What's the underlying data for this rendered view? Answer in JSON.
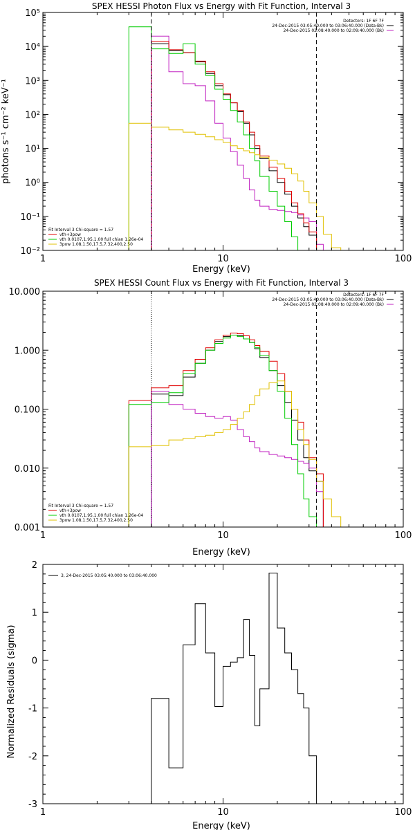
{
  "chart_data": [
    {
      "type": "line",
      "title": "SPEX HESSI Photon Flux vs Energy with Fit Function, Interval 3",
      "xlabel": "Energy (keV)",
      "ylabel": "photons s⁻¹ cm⁻² keV⁻¹",
      "xlim": [
        1,
        100
      ],
      "ylim": [
        0.01,
        100000
      ],
      "xscale": "log",
      "yscale": "log",
      "x_tick_labels": [
        "1",
        "10",
        "100"
      ],
      "y_tick_labels": [
        "10⁻²",
        "10⁻¹",
        "10⁰",
        "10¹",
        "10²",
        "10³",
        "10⁴",
        "10⁵"
      ],
      "info_lines": [
        "Detectors: 1F 6F 7F",
        "24-Dec-2015 03:05:40.000 to 03:06:40.000 (Data-Bk)",
        "24-Dec-2015 02:08:40.000 to 02:09:40.000 (Bk)"
      ],
      "fit_lines": [
        "Fit Interval 3   Chi-square = 1.57",
        "vth+3pow",
        "vth 0.0107,1.95,1.00  full chian 1.26e-04",
        "3pow 1.08,1.50,17.5,7.32,400,2.50"
      ],
      "vlines": [
        4.0,
        33.0
      ],
      "edges": [
        3.0,
        4.0,
        5.0,
        6.0,
        7.0,
        8.0,
        9.0,
        10.0,
        11.0,
        12.0,
        13.0,
        14.0,
        15.0,
        16.0,
        18.0,
        20.0,
        22.0,
        24.0,
        26.0,
        28.0,
        30.0,
        33.0,
        36.0,
        40.0,
        45.0
      ],
      "series": [
        {
          "name": "Data-Bk",
          "color": "#000000",
          "start": 1,
          "values": [
            12000,
            7500,
            6500,
            3500,
            1600,
            700,
            380,
            220,
            120,
            55,
            25,
            10,
            5,
            2.2,
            1.0,
            0.45,
            0.2,
            0.09,
            0.05,
            0.028,
            null,
            null,
            null
          ]
        },
        {
          "name": "Bk",
          "color": "#c020c0",
          "start": 1,
          "values": [
            20000,
            1800,
            800,
            700,
            250,
            55,
            20,
            8,
            3.2,
            1.3,
            0.6,
            0.3,
            0.2,
            0.16,
            0.15,
            0.14,
            0.13,
            0.11,
            0.09,
            0.07,
            0.015,
            null,
            null
          ]
        },
        {
          "name": "vth+3pow",
          "color": "#e00000",
          "start": 1,
          "values": [
            14000,
            8000,
            6500,
            3700,
            1800,
            800,
            400,
            220,
            130,
            60,
            30,
            12,
            6,
            2.8,
            1.3,
            0.55,
            0.25,
            0.12,
            0.065,
            0.035,
            null,
            null,
            null
          ]
        },
        {
          "name": "vth",
          "color": "#00cc00",
          "start": 0,
          "values": [
            38000,
            8500,
            6200,
            12000,
            3000,
            1400,
            550,
            280,
            130,
            60,
            25,
            10,
            4.3,
            1.5,
            0.55,
            0.2,
            0.07,
            0.025,
            0.01,
            null,
            null,
            null,
            null,
            null
          ]
        },
        {
          "name": "3pow",
          "color": "#e0c000",
          "start": 0,
          "values": [
            55,
            42,
            35,
            30,
            26,
            22,
            18,
            15,
            12,
            10,
            8.5,
            7.5,
            6.5,
            5.5,
            4.5,
            3.5,
            2.6,
            1.8,
            1.1,
            0.55,
            0.25,
            0.1,
            0.03,
            0.012
          ]
        }
      ]
    },
    {
      "type": "line",
      "title": "SPEX HESSI Count Flux vs Energy with Fit Function, Interval 3",
      "xlabel": "Energy (keV)",
      "ylabel": "",
      "xlim": [
        1,
        100
      ],
      "ylim": [
        0.001,
        10
      ],
      "xscale": "log",
      "yscale": "log",
      "x_tick_labels": [
        "1",
        "10",
        "100"
      ],
      "y_tick_labels": [
        "0.001",
        "0.010",
        "0.100",
        "1.000",
        "10.000"
      ],
      "info_lines": [
        "Detectors: 1F 6F 7F",
        "24-Dec-2015 03:05:40.000 to 03:06:40.000 (Data-Bk)",
        "24-Dec-2015 02:08:40.000 to 02:09:40.000 (Bk)"
      ],
      "fit_lines": [
        "Fit Interval 3   Chi-square = 1.57",
        "vth+3pow",
        "vth 0.0107,1.95,1.00  full chian 1.26e-04",
        "3pow 1.08,1.50,17.5,7.32,400,2.50"
      ],
      "vlines_dotted": [
        4.0
      ],
      "vlines": [
        33.0
      ],
      "edges": [
        3.0,
        4.0,
        5.0,
        6.0,
        7.0,
        8.0,
        9.0,
        10.0,
        11.0,
        12.0,
        13.0,
        14.0,
        15.0,
        16.0,
        18.0,
        20.0,
        22.0,
        24.0,
        26.0,
        28.0,
        30.0,
        33.0,
        36.0,
        40.0,
        45.0
      ],
      "series": [
        {
          "name": "Data-Bk",
          "color": "#000000",
          "start": 1,
          "values": [
            0.18,
            0.17,
            0.35,
            0.6,
            1.0,
            1.4,
            1.7,
            1.8,
            1.75,
            1.55,
            1.35,
            1.05,
            0.75,
            0.45,
            0.25,
            0.13,
            0.065,
            0.03,
            0.015,
            0.009,
            0.006,
            null,
            null
          ]
        },
        {
          "name": "Bk",
          "color": "#c020c0",
          "start": 1,
          "values": [
            0.2,
            0.12,
            0.1,
            0.085,
            0.075,
            0.07,
            0.075,
            0.065,
            0.045,
            0.034,
            0.028,
            0.022,
            0.019,
            0.017,
            0.016,
            0.015,
            0.014,
            0.013,
            0.012,
            0.01,
            0.004,
            null,
            null
          ]
        },
        {
          "name": "vth+3pow",
          "color": "#e00000",
          "start": 0,
          "values": [
            0.14,
            0.23,
            0.25,
            0.45,
            0.7,
            1.1,
            1.5,
            1.8,
            1.95,
            1.9,
            1.75,
            1.5,
            1.2,
            0.95,
            0.65,
            0.4,
            0.2,
            0.1,
            0.06,
            0.03,
            0.015,
            0.008,
            null,
            null
          ]
        },
        {
          "name": "vth",
          "color": "#00cc00",
          "start": 0,
          "values": [
            0.12,
            0.13,
            0.19,
            0.4,
            0.6,
            1.0,
            1.3,
            1.6,
            1.8,
            1.7,
            1.55,
            1.35,
            1.1,
            0.8,
            0.45,
            0.2,
            0.07,
            0.025,
            0.008,
            0.003,
            0.0015,
            null,
            null,
            null
          ]
        },
        {
          "name": "3pow",
          "color": "#e0c000",
          "start": 0,
          "values": [
            0.023,
            0.024,
            0.03,
            0.032,
            0.034,
            0.036,
            0.04,
            0.045,
            0.055,
            0.07,
            0.09,
            0.12,
            0.17,
            0.22,
            0.28,
            0.3,
            0.2,
            0.1,
            0.045,
            0.025,
            0.014,
            0.006,
            0.003,
            0.0015
          ]
        }
      ]
    },
    {
      "type": "line",
      "title": "",
      "xlabel": "Energy (keV)",
      "ylabel": "Normalized Residuals (sigma)",
      "xlim": [
        1,
        100
      ],
      "ylim": [
        -3,
        2
      ],
      "xscale": "log",
      "yscale": "linear",
      "x_tick_labels": [
        "1",
        "10",
        "100"
      ],
      "y_tick_labels": [
        "-3",
        "-2",
        "-1",
        "0",
        "1",
        "2"
      ],
      "legend": "3, 24-Dec-2015 03:05:40.000 to 03:06:40.000",
      "edges": [
        4.0,
        5.0,
        6.0,
        7.0,
        8.0,
        9.0,
        10.0,
        11.0,
        12.0,
        13.0,
        14.0,
        15.0,
        16.0,
        18.0,
        20.0,
        22.0,
        24.0,
        26.0,
        28.0,
        30.0,
        33.0
      ],
      "series": [
        {
          "name": "3, 24-Dec-2015 03:05:40.000 to 03:06:40.000",
          "color": "#000000",
          "start": 0,
          "values": [
            -0.8,
            -2.25,
            0.32,
            1.18,
            0.15,
            -0.97,
            -0.13,
            -0.04,
            0.05,
            0.85,
            0.1,
            -1.37,
            -0.6,
            1.82,
            0.67,
            0.15,
            -0.2,
            -0.7,
            -1.0,
            -2.0
          ]
        }
      ]
    }
  ]
}
